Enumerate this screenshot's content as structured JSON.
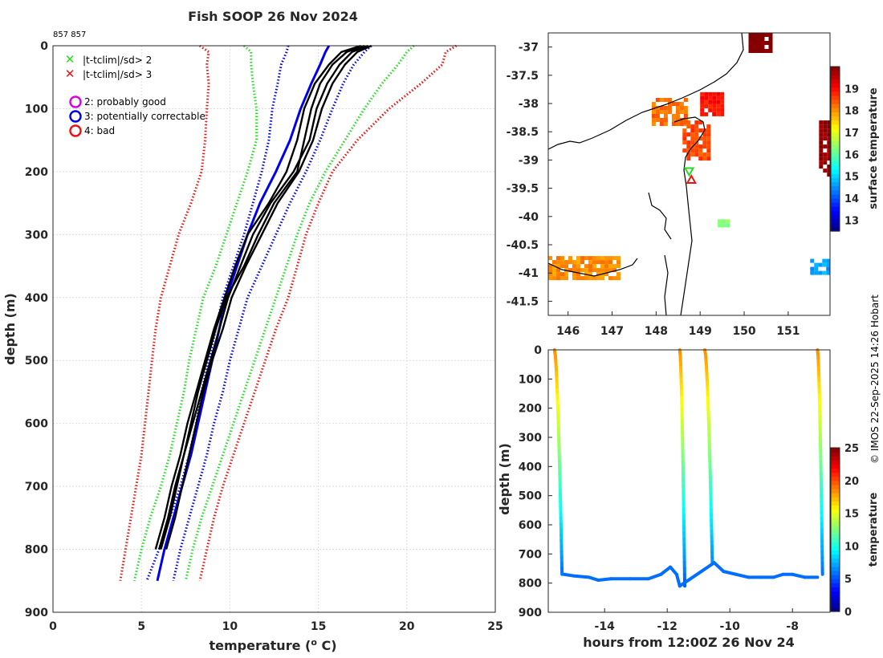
{
  "title": "Fish SOOP 26 Nov 2024",
  "id_text": "857 857",
  "credit": "© IMOS 22-Sep-2025 14:26 Hobart",
  "colors": {
    "climatology_2sd": "#22dd22",
    "climatology_3sd": "#ee1111",
    "mean": "#0000ee",
    "profile": "#000000",
    "legend_good": "#dd00dd"
  },
  "chart_data": [
    {
      "type": "line",
      "name": "profile",
      "xlabel": "temperature (o C)",
      "xlabel_base": "temperature (",
      "xlabel_sup": "o",
      "xlabel_end": " C)",
      "ylabel": "depth (m)",
      "xlim": [
        0,
        25
      ],
      "ylim": [
        900,
        0
      ],
      "xticks": [
        "0",
        "5",
        "10",
        "15",
        "20",
        "25"
      ],
      "yticks": [
        "0",
        "100",
        "200",
        "300",
        "400",
        "500",
        "600",
        "700",
        "800",
        "900"
      ],
      "legend": {
        "cross_items": [
          {
            "label": "|t-tclim|/sd> 2",
            "color": "#22dd22"
          },
          {
            "label": "|t-tclim|/sd> 3",
            "color": "#ee1111"
          }
        ],
        "circle_items": [
          {
            "label": "2: probably good",
            "color": "#dd00dd"
          },
          {
            "label": "3: potentially correctable",
            "color": "#0000ee"
          },
          {
            "label": "4: bad",
            "color": "#ee1111"
          }
        ]
      },
      "depths": [
        0,
        10,
        30,
        60,
        100,
        150,
        200,
        250,
        300,
        350,
        400,
        450,
        500,
        550,
        600,
        650,
        700,
        750,
        800,
        850
      ],
      "series": [
        {
          "name": "clim-3sd-low",
          "style": "dotted",
          "color": "#ee1111",
          "values": [
            8.3,
            8.8,
            8.7,
            8.8,
            8.7,
            8.6,
            8.4,
            7.8,
            7.1,
            6.6,
            6.1,
            5.8,
            5.6,
            5.4,
            5.2,
            5.0,
            4.7,
            4.4,
            4.1,
            3.8
          ]
        },
        {
          "name": "clim-2sd-low",
          "style": "dotted",
          "color": "#22dd22",
          "values": [
            10.8,
            11.2,
            11.2,
            11.3,
            11.5,
            11.5,
            11.0,
            10.4,
            9.8,
            9.2,
            8.5,
            8.1,
            7.7,
            7.4,
            7.0,
            6.6,
            6.1,
            5.5,
            5.0,
            4.6
          ]
        },
        {
          "name": "clim-mean-low",
          "style": "dotted",
          "color": "#0000ee",
          "values": [
            13.3,
            13.2,
            12.9,
            12.7,
            12.4,
            12.2,
            11.8,
            11.3,
            10.8,
            10.2,
            9.6,
            9.2,
            8.8,
            8.4,
            8.1,
            7.7,
            7.2,
            6.6,
            6.0,
            5.3
          ]
        },
        {
          "name": "clim-mean",
          "style": "solid",
          "color": "#0000ee",
          "values": [
            15.6,
            15.4,
            15.1,
            14.6,
            14.0,
            13.4,
            12.6,
            11.7,
            11.0,
            10.4,
            9.8,
            9.4,
            9.0,
            8.6,
            8.2,
            7.8,
            7.3,
            6.8,
            6.3,
            5.9
          ]
        },
        {
          "name": "clim-mean-high",
          "style": "dotted",
          "color": "#0000ee",
          "values": [
            18.0,
            17.6,
            17.0,
            16.4,
            15.8,
            15.1,
            14.3,
            13.4,
            12.6,
            11.8,
            11.0,
            10.5,
            10.0,
            9.6,
            9.1,
            8.7,
            8.2,
            7.7,
            7.2,
            6.8
          ]
        },
        {
          "name": "clim-2sd-high",
          "style": "dotted",
          "color": "#22dd22",
          "values": [
            20.4,
            20.0,
            19.5,
            18.6,
            17.6,
            16.5,
            15.4,
            14.5,
            13.8,
            13.2,
            12.6,
            12.0,
            11.4,
            10.8,
            10.2,
            9.6,
            9.0,
            8.4,
            7.9,
            7.5
          ]
        },
        {
          "name": "clim-3sd-high",
          "style": "dotted",
          "color": "#ee1111",
          "values": [
            22.8,
            22.2,
            22.0,
            20.8,
            19.0,
            17.2,
            15.8,
            15.0,
            14.3,
            13.8,
            13.3,
            12.6,
            12.0,
            11.4,
            10.8,
            10.2,
            9.6,
            9.1,
            8.7,
            8.3
          ]
        },
        {
          "name": "cast-1",
          "style": "solid",
          "color": "#000000",
          "values": [
            18.0,
            17.2,
            16.5,
            15.8,
            15.2,
            14.7,
            13.9,
            12.7,
            11.8,
            10.9,
            10.1,
            9.6,
            9.0,
            8.5,
            8.1,
            7.7,
            7.3,
            6.9,
            6.4,
            null
          ]
        },
        {
          "name": "cast-2",
          "style": "solid",
          "color": "#000000",
          "values": [
            17.8,
            16.9,
            16.2,
            15.5,
            14.9,
            14.5,
            13.6,
            12.3,
            11.3,
            10.6,
            9.9,
            9.4,
            8.9,
            8.4,
            7.9,
            7.4,
            7.0,
            6.6,
            6.1,
            null
          ]
        },
        {
          "name": "cast-3",
          "style": "solid",
          "color": "#000000",
          "values": [
            17.6,
            16.6,
            15.8,
            15.1,
            14.6,
            14.2,
            13.8,
            12.5,
            11.6,
            10.8,
            9.8,
            9.2,
            8.7,
            8.2,
            7.8,
            7.4,
            6.9,
            6.5,
            6.0,
            null
          ]
        },
        {
          "name": "cast-4",
          "style": "solid",
          "color": "#000000",
          "values": [
            17.4,
            16.3,
            15.6,
            14.8,
            14.2,
            13.8,
            13.2,
            12.2,
            11.0,
            10.3,
            9.7,
            9.1,
            8.6,
            8.1,
            7.6,
            7.2,
            6.7,
            6.3,
            5.8,
            null
          ]
        }
      ]
    },
    {
      "type": "heatmap",
      "name": "map",
      "xlim": [
        145.55,
        151.95
      ],
      "ylim": [
        -41.75,
        -36.75
      ],
      "xticks": [
        "146",
        "147",
        "148",
        "149",
        "150",
        "151"
      ],
      "yticks": [
        "-37",
        "-37.5",
        "-38",
        "-38.5",
        "-39",
        "-39.5",
        "-40",
        "-40.5",
        "-41",
        "-41.5"
      ],
      "colorbar_label": "surface temperature",
      "colorbar_range": [
        12.5,
        20
      ],
      "colorbar_ticks": [
        "13",
        "14",
        "15",
        "16",
        "17",
        "18",
        "19"
      ],
      "xbt_markers": [
        {
          "lon": 148.75,
          "lat": -39.2,
          "color": "#22dd22",
          "shape": "triangle-down"
        },
        {
          "lon": 148.8,
          "lat": -39.35,
          "color": "#ee1111",
          "shape": "triangle-up"
        }
      ],
      "sst_patches": [
        {
          "lon": [
            147.9,
            148.7
          ],
          "lat": [
            -38.35,
            -37.9
          ],
          "sst": 18.2
        },
        {
          "lon": [
            148.6,
            149.2
          ],
          "lat": [
            -39.0,
            -38.3
          ],
          "sst": 18.5
        },
        {
          "lon": [
            149.0,
            149.5
          ],
          "lat": [
            -38.2,
            -37.8
          ],
          "sst": 18.9
        },
        {
          "lon": [
            150.1,
            150.6
          ],
          "lat": [
            -37.05,
            -36.75
          ],
          "sst": 20.0
        },
        {
          "lon": [
            151.7,
            151.95
          ],
          "lat": [
            -39.25,
            -38.3
          ],
          "sst": 19.8
        },
        {
          "lon": [
            145.55,
            147.1
          ],
          "lat": [
            -41.1,
            -40.7
          ],
          "sst": 18.0
        },
        {
          "lon": [
            151.5,
            151.95
          ],
          "lat": [
            -41.0,
            -40.75
          ],
          "sst": 14.6
        },
        {
          "lon": [
            149.4,
            149.6
          ],
          "lat": [
            -40.15,
            -40.05
          ],
          "sst": 16.2
        }
      ]
    },
    {
      "type": "scatter",
      "name": "track",
      "xlabel": "hours from 12:00Z 26 Nov 24",
      "ylabel": "depth (m)",
      "xlim": [
        -15.8,
        -6.8
      ],
      "ylim": [
        900,
        0
      ],
      "xticks": [
        "-14",
        "-12",
        "-10",
        "-8"
      ],
      "yticks": [
        "0",
        "100",
        "200",
        "300",
        "400",
        "500",
        "600",
        "700",
        "800",
        "900"
      ],
      "colorbar_label": "temperature",
      "colorbar_range": [
        0,
        25
      ],
      "colorbar_ticks": [
        "0",
        "5",
        "10",
        "15",
        "20",
        "25"
      ],
      "casts": [
        {
          "x": [
            -15.6,
            -15.3
          ],
          "bottom": 770
        },
        {
          "x": [
            -11.6,
            -11.4
          ],
          "bottom": 810
        },
        {
          "x": [
            -10.8,
            -10.5
          ],
          "bottom": 730
        },
        {
          "x": [
            -7.2,
            -7.0
          ],
          "bottom": 770
        }
      ],
      "bottom_track": {
        "x": [
          -15.3,
          -15.0,
          -14.5,
          -14.2,
          -13.8,
          -13.2,
          -12.6,
          -12.2,
          -11.9,
          -11.7,
          -11.6,
          -10.5,
          -10.2,
          -9.8,
          -9.4,
          -9.0,
          -8.6,
          -8.3,
          -8.0,
          -7.6,
          -7.2
        ],
        "y": [
          770,
          775,
          780,
          790,
          785,
          785,
          785,
          770,
          745,
          770,
          810,
          730,
          760,
          770,
          780,
          780,
          780,
          770,
          770,
          780,
          780
        ]
      }
    }
  ]
}
